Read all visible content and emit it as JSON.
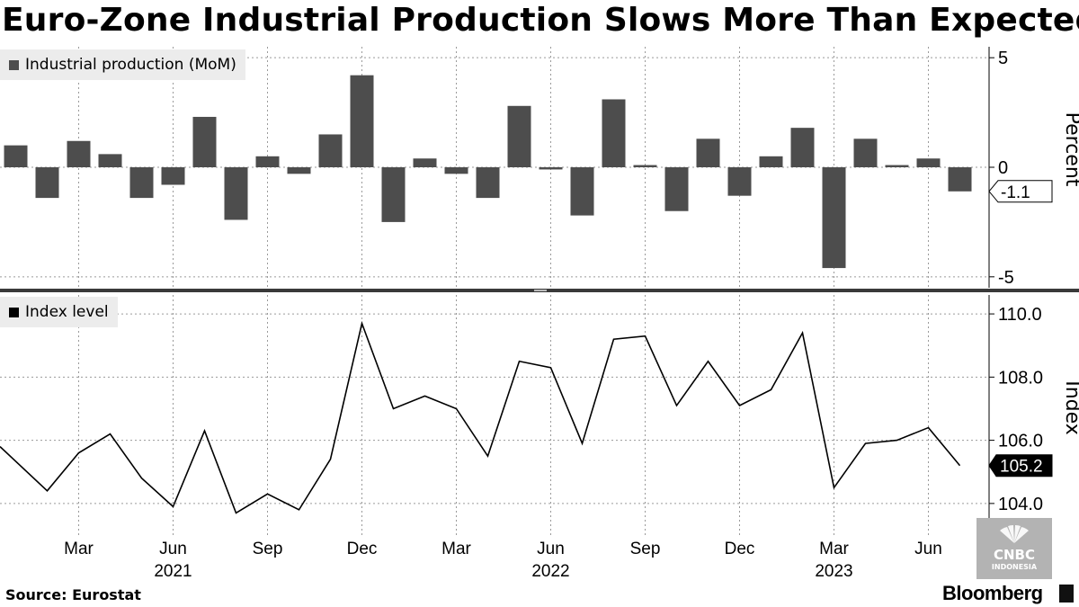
{
  "title": "Euro-Zone Industrial Production Slows More Than Expected",
  "source": "Source:  Eurostat",
  "brand": "Bloomberg",
  "watermark": {
    "line1": "CNBC",
    "line2": "INDONESIA"
  },
  "colors": {
    "bar": "#4d4d4d",
    "line": "#000000",
    "grid": "#9a9a9a",
    "legend_bg": "#ececec",
    "separator": "#3a3a3a"
  },
  "chart_data": [
    {
      "type": "bar",
      "legend": "Industrial production (MoM)",
      "ylabel": "Percent",
      "ylim": [
        -5.5,
        5.5
      ],
      "yticks": [
        "5",
        "0",
        "-5"
      ],
      "yticks_values": [
        5,
        0,
        -5
      ],
      "grid": true,
      "last_value_label": "-1.1",
      "series": [
        {
          "x": [
            "2021-01",
            "2021-02",
            "2021-03",
            "2021-04",
            "2021-05",
            "2021-06",
            "2021-07",
            "2021-08",
            "2021-09",
            "2021-10",
            "2021-11",
            "2021-12",
            "2022-01",
            "2022-02",
            "2022-03",
            "2022-04",
            "2022-05",
            "2022-06",
            "2022-07",
            "2022-08",
            "2022-09",
            "2022-10",
            "2022-11",
            "2022-12",
            "2023-01",
            "2023-02",
            "2023-03",
            "2023-04",
            "2023-05",
            "2023-06",
            "2023-07"
          ],
          "values": [
            1.0,
            -1.4,
            1.2,
            0.6,
            -1.4,
            -0.8,
            2.3,
            -2.4,
            0.5,
            -0.3,
            1.5,
            4.2,
            -2.5,
            0.4,
            -0.3,
            -1.4,
            2.8,
            -0.1,
            -2.2,
            3.1,
            0.1,
            -2.0,
            1.3,
            -1.3,
            0.5,
            1.8,
            -4.6,
            1.3,
            0.1,
            0.4,
            -1.1
          ]
        }
      ]
    },
    {
      "type": "line",
      "legend": "Index level",
      "ylabel": "Index",
      "ylim": [
        103.0,
        110.6
      ],
      "yticks": [
        "110.0",
        "108.0",
        "106.0",
        "104.0"
      ],
      "yticks_values": [
        110,
        108,
        106,
        104
      ],
      "grid": true,
      "last_value_label": "105.2",
      "x_ticks": [
        "Mar",
        "Jun",
        "Sep",
        "Dec",
        "Mar",
        "Jun",
        "Sep",
        "Dec",
        "Mar",
        "Jun"
      ],
      "x_tick_months": [
        "2021-03",
        "2021-06",
        "2021-09",
        "2021-12",
        "2022-03",
        "2022-06",
        "2022-09",
        "2022-12",
        "2023-03",
        "2023-06"
      ],
      "year_labels": [
        "2021",
        "2022",
        "2023"
      ],
      "year_label_months": [
        "2021-06",
        "2022-06",
        "2023-03"
      ],
      "series": [
        {
          "x": [
            "2021-01",
            "2021-02",
            "2021-03",
            "2021-04",
            "2021-05",
            "2021-06",
            "2021-07",
            "2021-08",
            "2021-09",
            "2021-10",
            "2021-11",
            "2021-12",
            "2022-01",
            "2022-02",
            "2022-03",
            "2022-04",
            "2022-05",
            "2022-06",
            "2022-07",
            "2022-08",
            "2022-09",
            "2022-10",
            "2022-11",
            "2022-12",
            "2023-01",
            "2023-02",
            "2023-03",
            "2023-04",
            "2023-05",
            "2023-06",
            "2023-07"
          ],
          "values": [
            105.8,
            104.4,
            105.6,
            106.2,
            104.8,
            103.9,
            106.3,
            103.7,
            104.3,
            103.8,
            105.4,
            109.7,
            107.0,
            107.4,
            107.0,
            105.5,
            108.5,
            108.3,
            105.9,
            109.2,
            109.3,
            107.1,
            108.5,
            107.1,
            107.6,
            109.4,
            104.5,
            105.9,
            106.0,
            106.4,
            105.2
          ]
        }
      ]
    }
  ]
}
